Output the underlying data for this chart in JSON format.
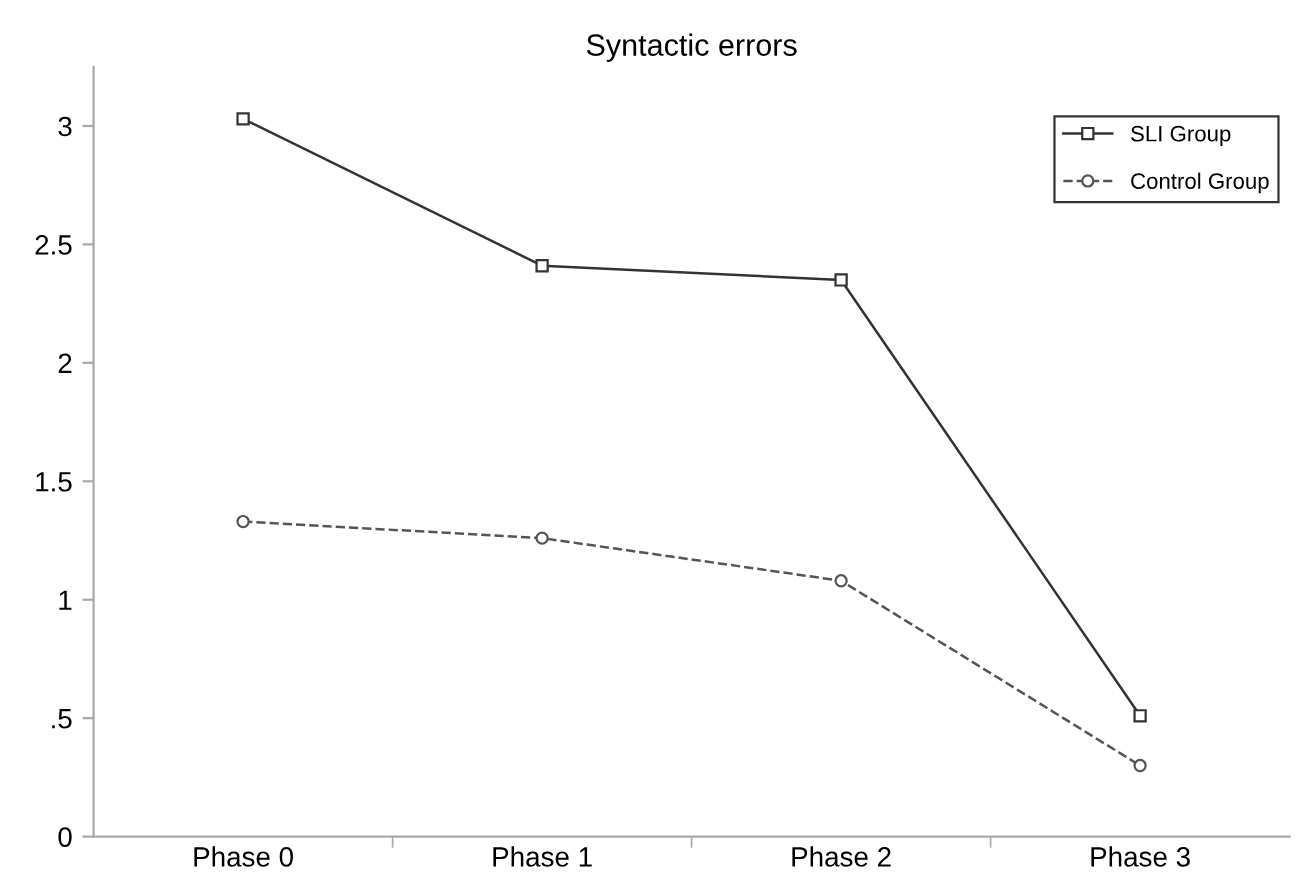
{
  "chart_data": {
    "type": "line",
    "title": "Syntactic errors",
    "categories": [
      "Phase 0",
      "Phase 1",
      "Phase 2",
      "Phase 3"
    ],
    "series": [
      {
        "name": "SLI Group",
        "color": "#333333",
        "values": [
          3.03,
          2.41,
          2.35,
          0.51
        ],
        "marker": "square",
        "line_style": "solid"
      },
      {
        "name": "Control Group",
        "color": "#555555",
        "values": [
          1.33,
          1.26,
          1.08,
          0.3
        ],
        "marker": "circle",
        "line_style": "dashed"
      }
    ],
    "ylim": [
      0,
      3.25
    ],
    "yticks": [
      0,
      {
        "value": 0.5,
        "label": ".5"
      },
      1,
      1.5,
      2,
      2.5,
      3
    ],
    "grid": false,
    "legend": "top right"
  }
}
